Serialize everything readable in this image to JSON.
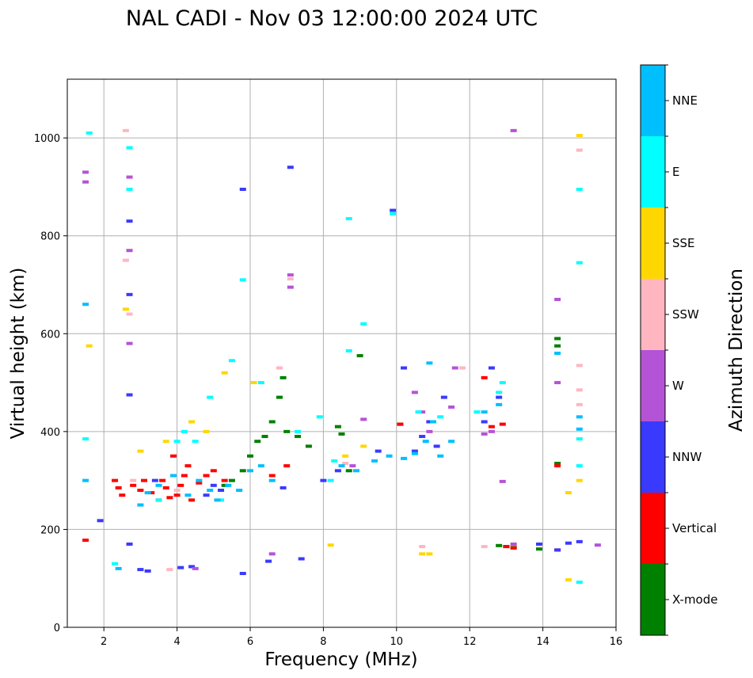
{
  "chart_data": {
    "type": "scatter",
    "title": "NAL CADI - Nov 03 12:00:00 2024 UTC",
    "xlabel": "Frequency (MHz)",
    "ylabel": "Virtual height (km)",
    "xlim": [
      1,
      16
    ],
    "ylim": [
      0,
      1120
    ],
    "xticks": [
      2,
      4,
      6,
      8,
      10,
      12,
      14,
      16
    ],
    "yticks": [
      0,
      200,
      400,
      600,
      800,
      1000
    ],
    "grid": true,
    "colorbar": {
      "label": "Azimuth Direction",
      "categories": [
        {
          "name": "X-mode",
          "color": "#008000"
        },
        {
          "name": "Vertical",
          "color": "#ff0000"
        },
        {
          "name": "NNW",
          "color": "#3a3aff"
        },
        {
          "name": "W",
          "color": "#b553d6"
        },
        {
          "name": "SSW",
          "color": "#ffb6c1"
        },
        {
          "name": "SSE",
          "color": "#ffd700"
        },
        {
          "name": "E",
          "color": "#00ffff"
        },
        {
          "name": "NNE",
          "color": "#00bfff"
        }
      ]
    },
    "series": [
      {
        "name": "X-mode",
        "points": [
          [
            5.3,
            290
          ],
          [
            5.5,
            300
          ],
          [
            5.8,
            320
          ],
          [
            6.0,
            350
          ],
          [
            6.2,
            380
          ],
          [
            6.4,
            390
          ],
          [
            6.6,
            420
          ],
          [
            6.8,
            470
          ],
          [
            6.9,
            510
          ],
          [
            7.0,
            400
          ],
          [
            7.3,
            390
          ],
          [
            7.6,
            370
          ],
          [
            8.4,
            410
          ],
          [
            8.5,
            395
          ],
          [
            8.7,
            320
          ],
          [
            9.0,
            555
          ],
          [
            10.1,
            415
          ],
          [
            12.8,
            167
          ],
          [
            13.0,
            165
          ],
          [
            13.2,
            163
          ],
          [
            13.9,
            160
          ],
          [
            14.4,
            590
          ],
          [
            14.4,
            575
          ],
          [
            14.4,
            335
          ]
        ]
      },
      {
        "name": "Vertical",
        "points": [
          [
            1.5,
            178
          ],
          [
            2.3,
            300
          ],
          [
            2.4,
            285
          ],
          [
            2.5,
            270
          ],
          [
            2.8,
            290
          ],
          [
            3.0,
            280
          ],
          [
            3.1,
            300
          ],
          [
            3.3,
            275
          ],
          [
            3.5,
            260
          ],
          [
            3.6,
            300
          ],
          [
            3.7,
            285
          ],
          [
            3.8,
            265
          ],
          [
            3.9,
            350
          ],
          [
            4.0,
            270
          ],
          [
            4.1,
            290
          ],
          [
            4.2,
            310
          ],
          [
            4.3,
            330
          ],
          [
            4.4,
            260
          ],
          [
            4.6,
            295
          ],
          [
            4.8,
            310
          ],
          [
            5.0,
            320
          ],
          [
            5.3,
            300
          ],
          [
            6.6,
            310
          ],
          [
            7.0,
            330
          ],
          [
            10.1,
            415
          ],
          [
            12.4,
            510
          ],
          [
            12.6,
            410
          ],
          [
            12.9,
            415
          ],
          [
            13.0,
            165
          ],
          [
            13.2,
            162
          ],
          [
            14.4,
            330
          ],
          [
            14.4,
            158
          ]
        ]
      },
      {
        "name": "NNW",
        "points": [
          [
            1.9,
            218
          ],
          [
            2.7,
            170
          ],
          [
            2.7,
            475
          ],
          [
            2.7,
            680
          ],
          [
            2.7,
            830
          ],
          [
            3.0,
            118
          ],
          [
            3.2,
            115
          ],
          [
            3.4,
            300
          ],
          [
            4.1,
            122
          ],
          [
            4.4,
            124
          ],
          [
            4.8,
            270
          ],
          [
            5.0,
            290
          ],
          [
            5.2,
            280
          ],
          [
            5.8,
            110
          ],
          [
            5.8,
            895
          ],
          [
            6.5,
            135
          ],
          [
            6.9,
            285
          ],
          [
            7.1,
            940
          ],
          [
            7.4,
            140
          ],
          [
            8.0,
            300
          ],
          [
            8.4,
            320
          ],
          [
            9.5,
            360
          ],
          [
            9.9,
            852
          ],
          [
            10.2,
            530
          ],
          [
            10.5,
            360
          ],
          [
            10.7,
            390
          ],
          [
            10.9,
            420
          ],
          [
            11.1,
            370
          ],
          [
            11.3,
            470
          ],
          [
            12.4,
            420
          ],
          [
            12.6,
            530
          ],
          [
            12.8,
            470
          ],
          [
            13.9,
            170
          ],
          [
            14.4,
            158
          ],
          [
            14.7,
            172
          ],
          [
            15.0,
            175
          ]
        ]
      },
      {
        "name": "W",
        "points": [
          [
            1.5,
            930
          ],
          [
            1.5,
            910
          ],
          [
            2.7,
            920
          ],
          [
            2.7,
            770
          ],
          [
            2.7,
            580
          ],
          [
            4.5,
            120
          ],
          [
            6.6,
            150
          ],
          [
            7.1,
            720
          ],
          [
            7.1,
            695
          ],
          [
            8.8,
            330
          ],
          [
            9.1,
            425
          ],
          [
            10.5,
            480
          ],
          [
            10.7,
            440
          ],
          [
            10.9,
            400
          ],
          [
            11.5,
            450
          ],
          [
            11.6,
            530
          ],
          [
            12.4,
            395
          ],
          [
            12.6,
            400
          ],
          [
            12.9,
            298
          ],
          [
            13.2,
            1015
          ],
          [
            13.2,
            170
          ],
          [
            14.4,
            670
          ],
          [
            14.4,
            500
          ],
          [
            15.5,
            168
          ]
        ]
      },
      {
        "name": "SSW",
        "points": [
          [
            2.6,
            1015
          ],
          [
            2.6,
            750
          ],
          [
            2.7,
            640
          ],
          [
            2.8,
            300
          ],
          [
            3.8,
            118
          ],
          [
            4.0,
            280
          ],
          [
            6.8,
            530
          ],
          [
            7.1,
            712
          ],
          [
            8.6,
            335
          ],
          [
            10.7,
            165
          ],
          [
            11.8,
            530
          ],
          [
            12.4,
            165
          ],
          [
            15.0,
            975
          ],
          [
            15.0,
            535
          ],
          [
            15.0,
            485
          ],
          [
            15.0,
            455
          ]
        ]
      },
      {
        "name": "SSE",
        "points": [
          [
            1.6,
            575
          ],
          [
            2.6,
            650
          ],
          [
            3.0,
            360
          ],
          [
            3.7,
            380
          ],
          [
            4.4,
            420
          ],
          [
            4.8,
            400
          ],
          [
            5.3,
            520
          ],
          [
            6.1,
            500
          ],
          [
            8.2,
            168
          ],
          [
            8.6,
            350
          ],
          [
            9.1,
            370
          ],
          [
            10.7,
            150
          ],
          [
            10.9,
            150
          ],
          [
            14.7,
            275
          ],
          [
            14.7,
            97
          ],
          [
            15.0,
            1005
          ],
          [
            15.0,
            300
          ]
        ]
      },
      {
        "name": "E",
        "points": [
          [
            1.5,
            385
          ],
          [
            1.6,
            1010
          ],
          [
            2.3,
            130
          ],
          [
            2.7,
            980
          ],
          [
            2.7,
            895
          ],
          [
            3.5,
            260
          ],
          [
            4.0,
            380
          ],
          [
            4.2,
            400
          ],
          [
            4.5,
            380
          ],
          [
            4.9,
            470
          ],
          [
            5.2,
            260
          ],
          [
            5.5,
            545
          ],
          [
            5.8,
            710
          ],
          [
            6.3,
            500
          ],
          [
            7.3,
            400
          ],
          [
            7.9,
            430
          ],
          [
            8.2,
            300
          ],
          [
            8.3,
            340
          ],
          [
            8.7,
            835
          ],
          [
            8.7,
            565
          ],
          [
            9.1,
            620
          ],
          [
            9.9,
            845
          ],
          [
            10.6,
            440
          ],
          [
            11.2,
            430
          ],
          [
            12.2,
            440
          ],
          [
            12.8,
            480
          ],
          [
            12.9,
            500
          ],
          [
            15.0,
            895
          ],
          [
            15.0,
            745
          ],
          [
            15.0,
            385
          ],
          [
            15.0,
            330
          ],
          [
            15.0,
            92
          ]
        ]
      },
      {
        "name": "NNE",
        "points": [
          [
            1.5,
            300
          ],
          [
            1.5,
            660
          ],
          [
            2.4,
            120
          ],
          [
            3.0,
            250
          ],
          [
            3.2,
            275
          ],
          [
            3.5,
            290
          ],
          [
            3.9,
            310
          ],
          [
            4.3,
            270
          ],
          [
            4.6,
            300
          ],
          [
            4.9,
            280
          ],
          [
            5.1,
            260
          ],
          [
            5.4,
            290
          ],
          [
            5.7,
            280
          ],
          [
            6.0,
            320
          ],
          [
            6.3,
            330
          ],
          [
            6.6,
            300
          ],
          [
            8.5,
            330
          ],
          [
            8.9,
            320
          ],
          [
            9.4,
            340
          ],
          [
            9.8,
            350
          ],
          [
            10.2,
            345
          ],
          [
            10.5,
            355
          ],
          [
            10.8,
            380
          ],
          [
            10.9,
            540
          ],
          [
            11.0,
            420
          ],
          [
            11.2,
            350
          ],
          [
            11.5,
            380
          ],
          [
            12.4,
            440
          ],
          [
            12.8,
            455
          ],
          [
            14.4,
            560
          ],
          [
            15.0,
            430
          ],
          [
            15.0,
            405
          ]
        ]
      }
    ]
  }
}
